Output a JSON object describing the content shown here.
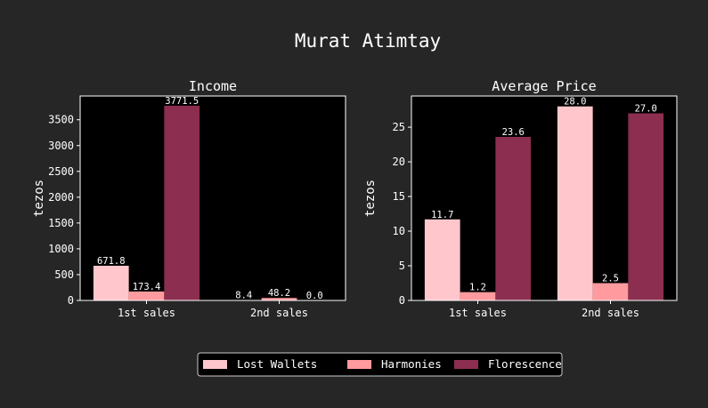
{
  "figure": {
    "title": "Murat Atimtay",
    "background": "#262626",
    "axes_background": "#000000",
    "text_color": "#ffffff"
  },
  "legend": {
    "placement": "bottom-center",
    "entries": [
      {
        "label": "Lost Wallets",
        "color": "#ffc7cc"
      },
      {
        "label": "Harmonies",
        "color": "#ff9a9e"
      },
      {
        "label": "Florescence",
        "color": "#8b2e50"
      }
    ]
  },
  "chart_data": [
    {
      "type": "bar",
      "title": "Income",
      "ylabel": "tezos",
      "xlabel": "",
      "categories": [
        "1st sales",
        "2nd sales"
      ],
      "ylim": [
        0,
        3960
      ],
      "yticks": [
        0,
        500,
        1000,
        1500,
        2000,
        2500,
        3000,
        3500
      ],
      "grid": false,
      "series": [
        {
          "name": "Lost Wallets",
          "values": [
            671.8,
            8.4
          ],
          "labels": [
            "671.8",
            "8.4"
          ]
        },
        {
          "name": "Harmonies",
          "values": [
            173.4,
            48.2
          ],
          "labels": [
            "173.4",
            "48.2"
          ]
        },
        {
          "name": "Florescence",
          "values": [
            3771.5,
            0.0
          ],
          "labels": [
            "3771.5",
            "0.0"
          ]
        }
      ]
    },
    {
      "type": "bar",
      "title": "Average Price",
      "ylabel": "tezos",
      "xlabel": "",
      "categories": [
        "1st sales",
        "2nd sales"
      ],
      "ylim": [
        0,
        29.5
      ],
      "yticks": [
        0,
        5,
        10,
        15,
        20,
        25
      ],
      "grid": false,
      "series": [
        {
          "name": "Lost Wallets",
          "values": [
            11.7,
            28.0
          ],
          "labels": [
            "11.7",
            "28.0"
          ]
        },
        {
          "name": "Harmonies",
          "values": [
            1.2,
            2.5
          ],
          "labels": [
            "1.2",
            "2.5"
          ]
        },
        {
          "name": "Florescence",
          "values": [
            23.6,
            27.0
          ],
          "labels": [
            "23.6",
            "27.0"
          ]
        }
      ]
    }
  ]
}
